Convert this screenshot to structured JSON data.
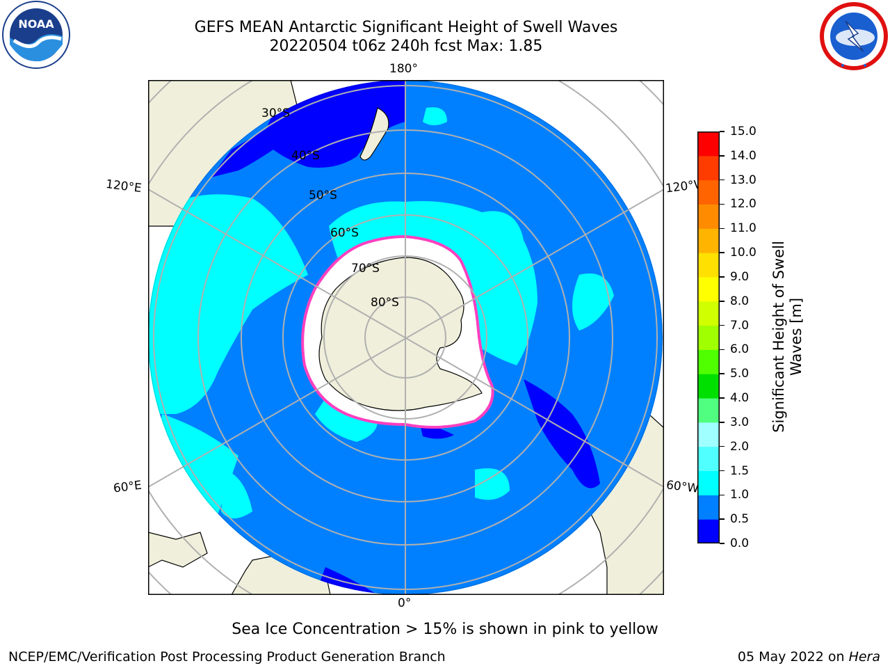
{
  "header": {
    "title_line1": "GEFS MEAN Antarctic Significant Height of Swell Waves",
    "title_line2": "20220504 t06z 240h fcst   Max: 1.85"
  },
  "logos": {
    "left": {
      "name": "noaa-logo",
      "text": "NOAA"
    },
    "right": {
      "name": "national-weather-service-logo"
    }
  },
  "map": {
    "longitude_labels": {
      "top": "180°",
      "bottom": "0°",
      "upper_left": "120°E",
      "upper_right": "120°W",
      "lower_left": "60°E",
      "lower_right": "60°W"
    },
    "latitude_labels": [
      "30°S",
      "40°S",
      "50°S",
      "60°S",
      "70°S",
      "80°S"
    ]
  },
  "colorbar": {
    "label_line1": "Significant Height of Swell",
    "label_line2": "Waves [m]",
    "ticks": [
      "15.0",
      "14.0",
      "13.0",
      "12.0",
      "11.0",
      "10.0",
      "9.0",
      "8.0",
      "7.0",
      "6.0",
      "5.0",
      "4.0",
      "3.0",
      "2.0",
      "1.5",
      "1.0",
      "0.5",
      "0.0"
    ],
    "colors": [
      "#0000ff",
      "#0080ff",
      "#00ffff",
      "#50ffff",
      "#a0ffff",
      "#50ff80",
      "#00e000",
      "#50ff00",
      "#a0ff00",
      "#d0ff00",
      "#ffff00",
      "#ffe000",
      "#ffb400",
      "#ff8c00",
      "#ff6400",
      "#ff3c00",
      "#ff0000"
    ]
  },
  "footer": {
    "note": "Sea Ice Concentration > 15% is shown in pink to yellow",
    "credit": "NCEP/EMC/Verification Post Processing Product Generation Branch",
    "date": "05 May 2022 on",
    "machine": "Hera"
  }
}
